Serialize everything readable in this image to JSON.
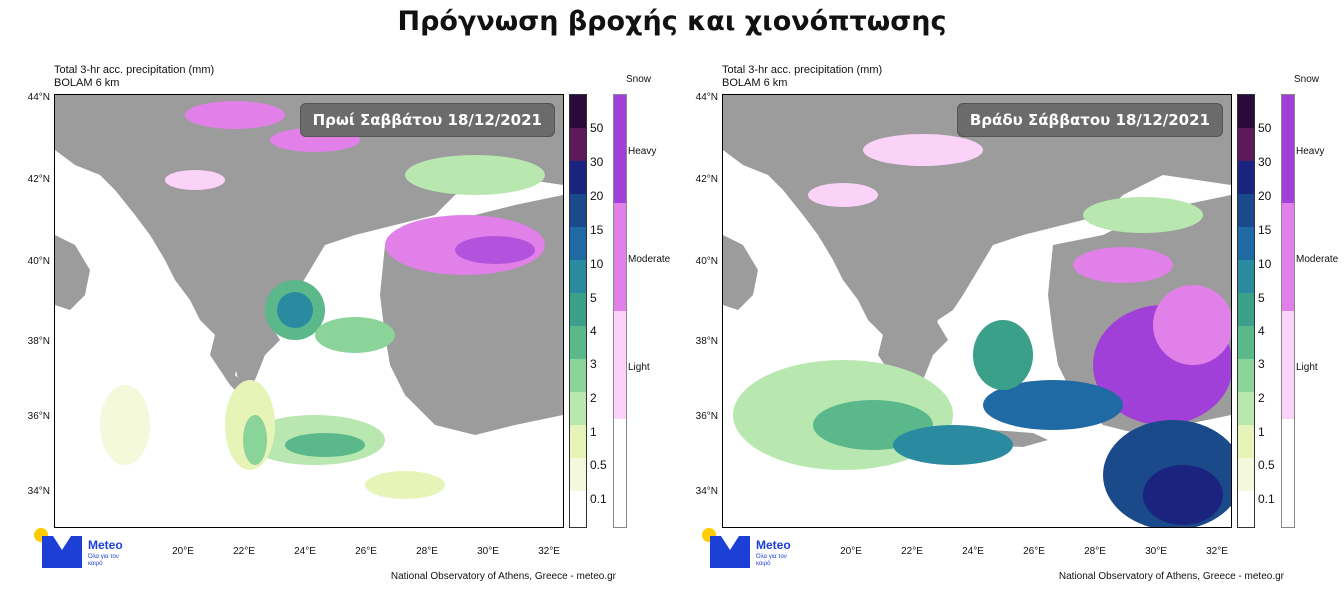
{
  "title": "Πρόγνωση βροχής και χιονόπτωσης",
  "panels": [
    {
      "header_line1": "Total 3-hr acc. precipitation (mm)",
      "header_line2": "BOLAM 6 km",
      "date_label": "Πρωί Σαββάτου 18/12/2021",
      "credit": "National Observatory of Athens, Greece - meteo.gr"
    },
    {
      "header_line1": "Total 3-hr acc. precipitation (mm)",
      "header_line2": "BOLAM 6 km",
      "date_label": "Βράδυ Σάββατου 18/12/2021",
      "credit": "National Observatory of Athens, Greece - meteo.gr"
    }
  ],
  "latitude_labels": [
    "44°N",
    "42°N",
    "40°N",
    "38°N",
    "36°N",
    "34°N"
  ],
  "longitude_labels": [
    "20°E",
    "22°E",
    "24°E",
    "26°E",
    "28°E",
    "30°E",
    "32°E"
  ],
  "rain_scale": {
    "labels": [
      "50",
      "30",
      "20",
      "15",
      "10",
      "5",
      "4",
      "3",
      "2",
      "1",
      "0.5",
      "0.1"
    ],
    "colors": [
      "#2a0a3a",
      "#5c1a5c",
      "#1a237e",
      "#1a4a8a",
      "#1f6aa5",
      "#2a8aa0",
      "#3aa08a",
      "#5ab88a",
      "#8ad49a",
      "#b8e8b0",
      "#e6f4b8",
      "#f4f9dc",
      "#ffffff"
    ]
  },
  "snow_scale": {
    "title": "Snow",
    "labels": [
      "Heavy",
      "Moderate",
      "Light"
    ],
    "colors": [
      "#a040d8",
      "#e080e8",
      "#fbd2f8",
      "#ffffff"
    ]
  },
  "logo": {
    "name": "Meteo",
    "tagline": "Όλα για τον καιρό"
  },
  "colors": {
    "land": "#9c9c9c",
    "sea": "#ffffff",
    "date_box": "#6b6b6b"
  }
}
